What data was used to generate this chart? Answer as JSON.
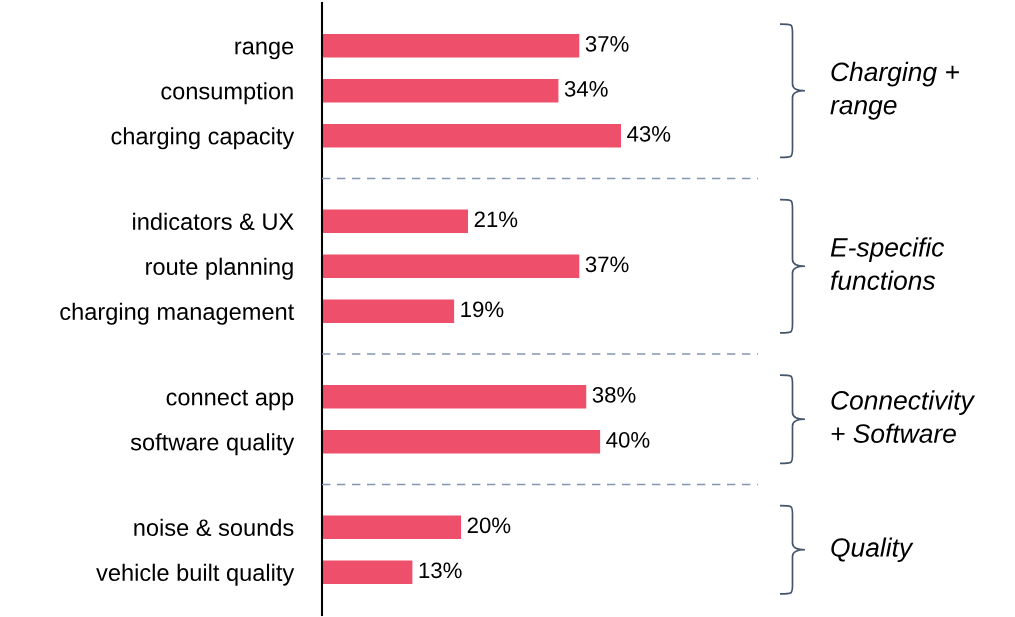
{
  "chart_data": [
    {
      "type": "bar",
      "orientation": "horizontal",
      "categories": [
        "range",
        "consumption",
        "charging capacity"
      ],
      "values": [
        37,
        34,
        43
      ],
      "color": "#ee4f6a",
      "value_labels": [
        "37%",
        "34%",
        "43%"
      ],
      "tick_labels": "y",
      "annotations": [
        "Charging + range"
      ]
    },
    {
      "type": "bar",
      "orientation": "horizontal",
      "categories": [
        "indicators & UX",
        "route planning",
        "charging management"
      ],
      "values": [
        21,
        37,
        19
      ],
      "color": "#ee4f6a",
      "value_labels": [
        "21%",
        "37%",
        "19%"
      ],
      "tick_labels": "y",
      "annotations": [
        "E-specific functions"
      ]
    },
    {
      "type": "bar",
      "orientation": "horizontal",
      "categories": [
        "connect app",
        "software quality"
      ],
      "values": [
        38,
        40
      ],
      "color": "#ee4f6a",
      "value_labels": [
        "38%",
        "40%"
      ],
      "tick_labels": "y",
      "annotations": [
        "Connectivity + Software"
      ]
    },
    {
      "type": "bar",
      "orientation": "horizontal",
      "categories": [
        "noise & sounds",
        "vehicle built quality"
      ],
      "values": [
        20,
        13
      ],
      "color": "#ee4f6a",
      "value_labels": [
        "20%",
        "13%"
      ],
      "tick_labels": "y",
      "annotations": [
        "Quality"
      ]
    }
  ]
}
